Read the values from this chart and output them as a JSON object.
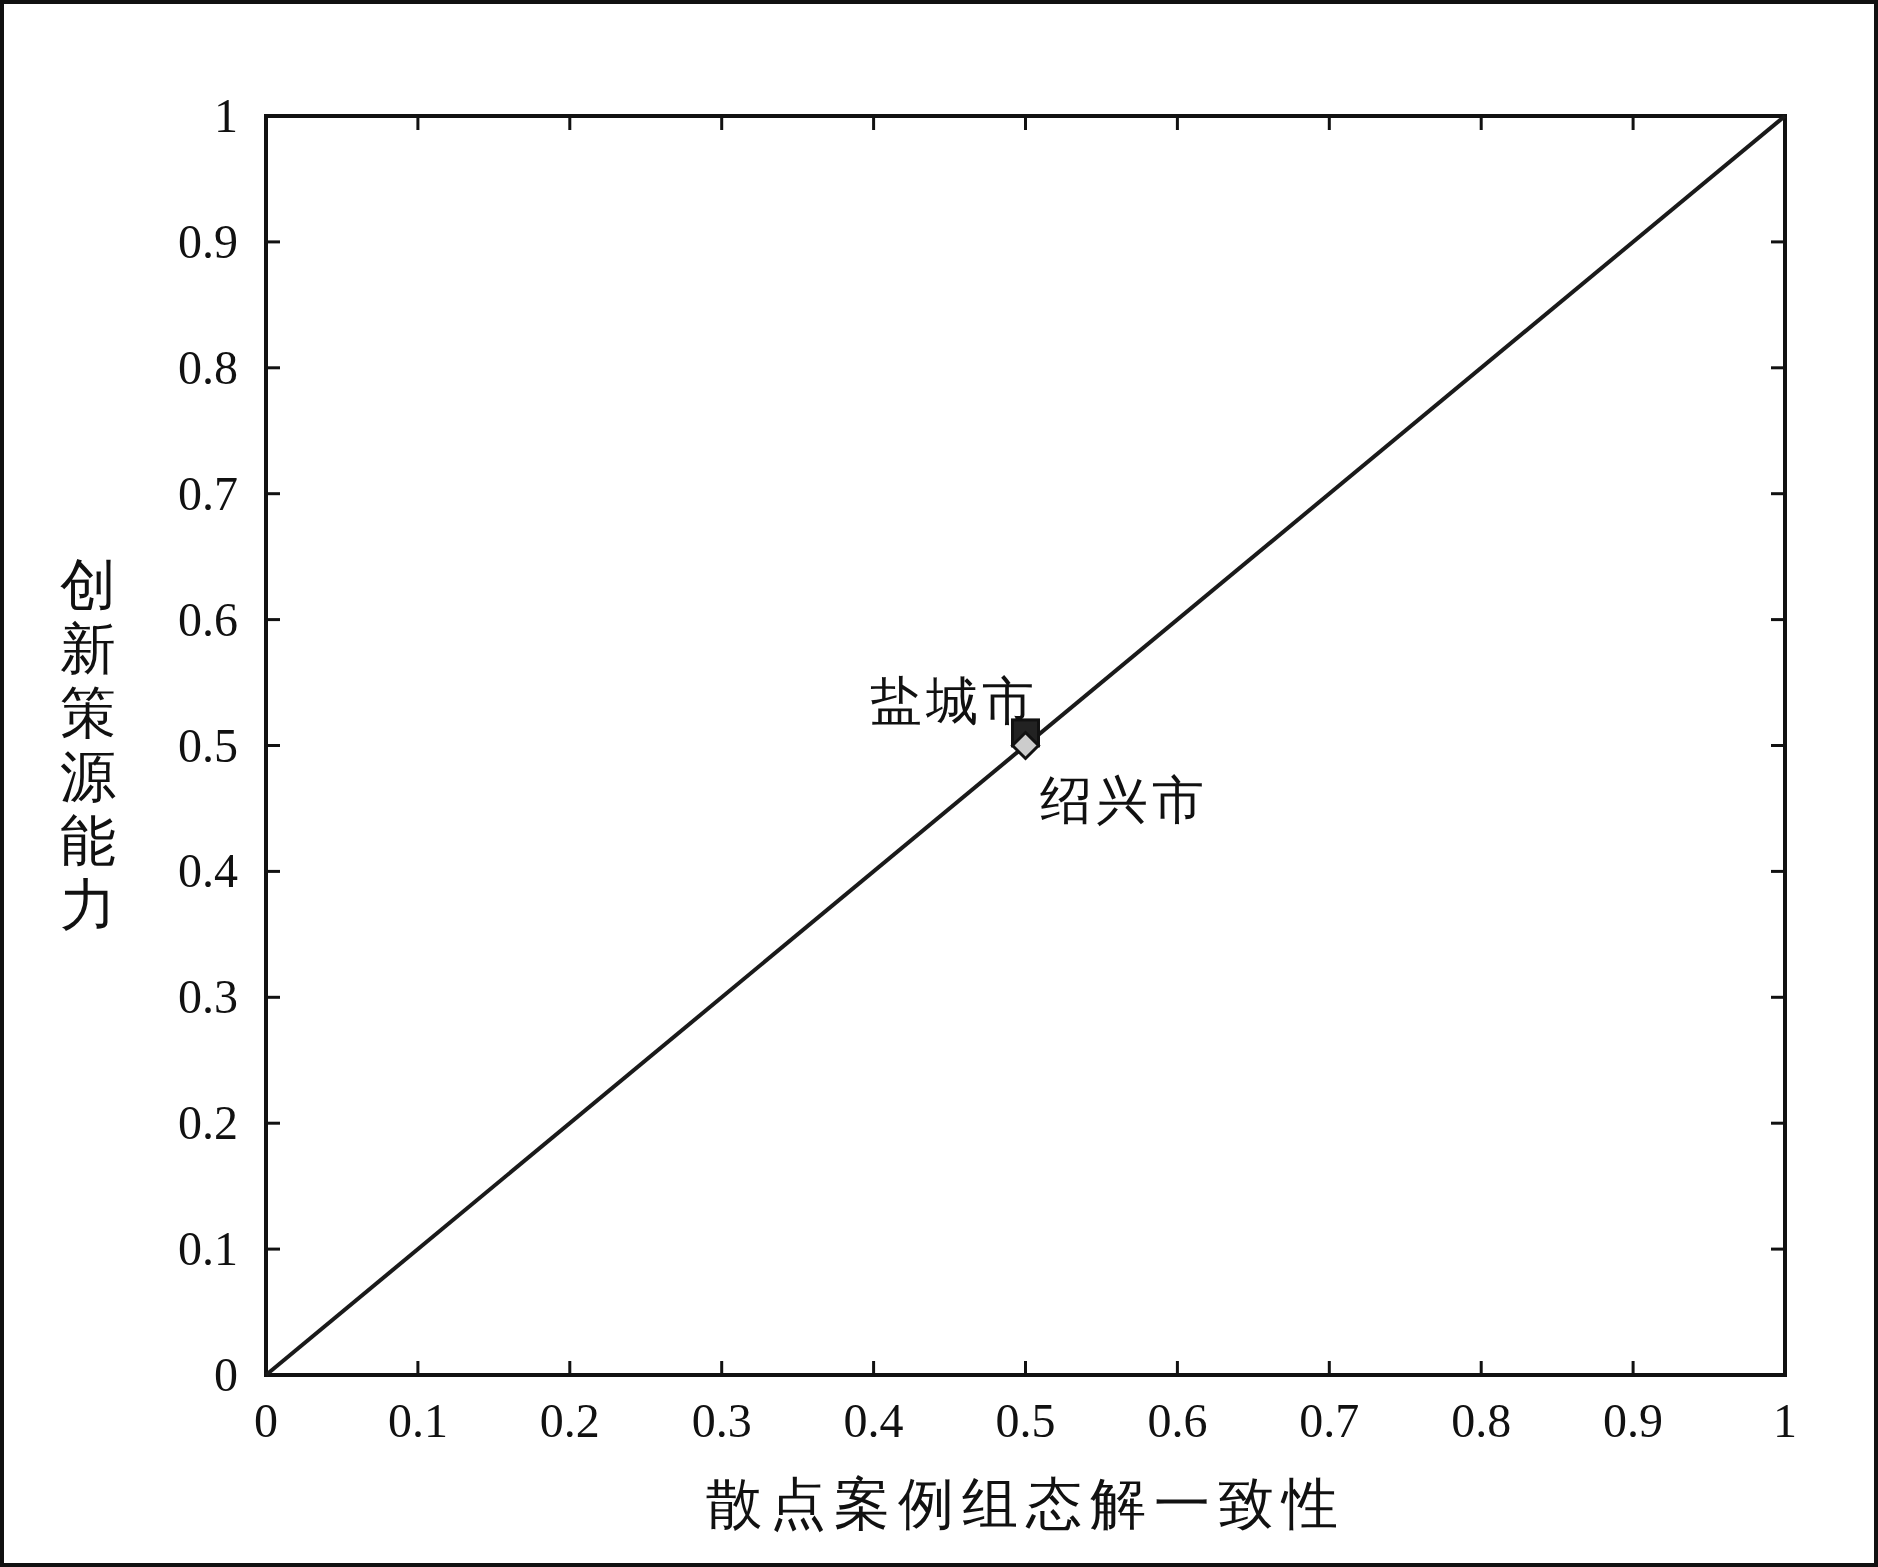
{
  "chart_data": {
    "type": "scatter",
    "xlabel": "散点案例组态解一致性",
    "ylabel": "创新策源能力",
    "xlim": [
      0,
      1
    ],
    "ylim": [
      0,
      1
    ],
    "xticks": [
      0,
      0.1,
      0.2,
      0.3,
      0.4,
      0.5,
      0.6,
      0.7,
      0.8,
      0.9,
      1
    ],
    "yticks": [
      0,
      0.1,
      0.2,
      0.3,
      0.4,
      0.5,
      0.6,
      0.7,
      0.8,
      0.9,
      1
    ],
    "series": [
      {
        "type": "line",
        "x": [
          0,
          1
        ],
        "values": [
          0,
          1
        ],
        "color": "#1a1a1a",
        "marker": "none"
      },
      {
        "x": [
          0.5
        ],
        "values": [
          0.51
        ],
        "color": "#222222",
        "marker": "square"
      },
      {
        "x": [
          0.5
        ],
        "values": [
          0.5
        ],
        "color": "#cccccc",
        "marker": "diamond"
      }
    ],
    "annotations": [
      {
        "text": "盐城市",
        "x": 0.5,
        "y": 0.51
      },
      {
        "text": "绍兴市",
        "x": 0.5,
        "y": 0.5
      }
    ]
  }
}
